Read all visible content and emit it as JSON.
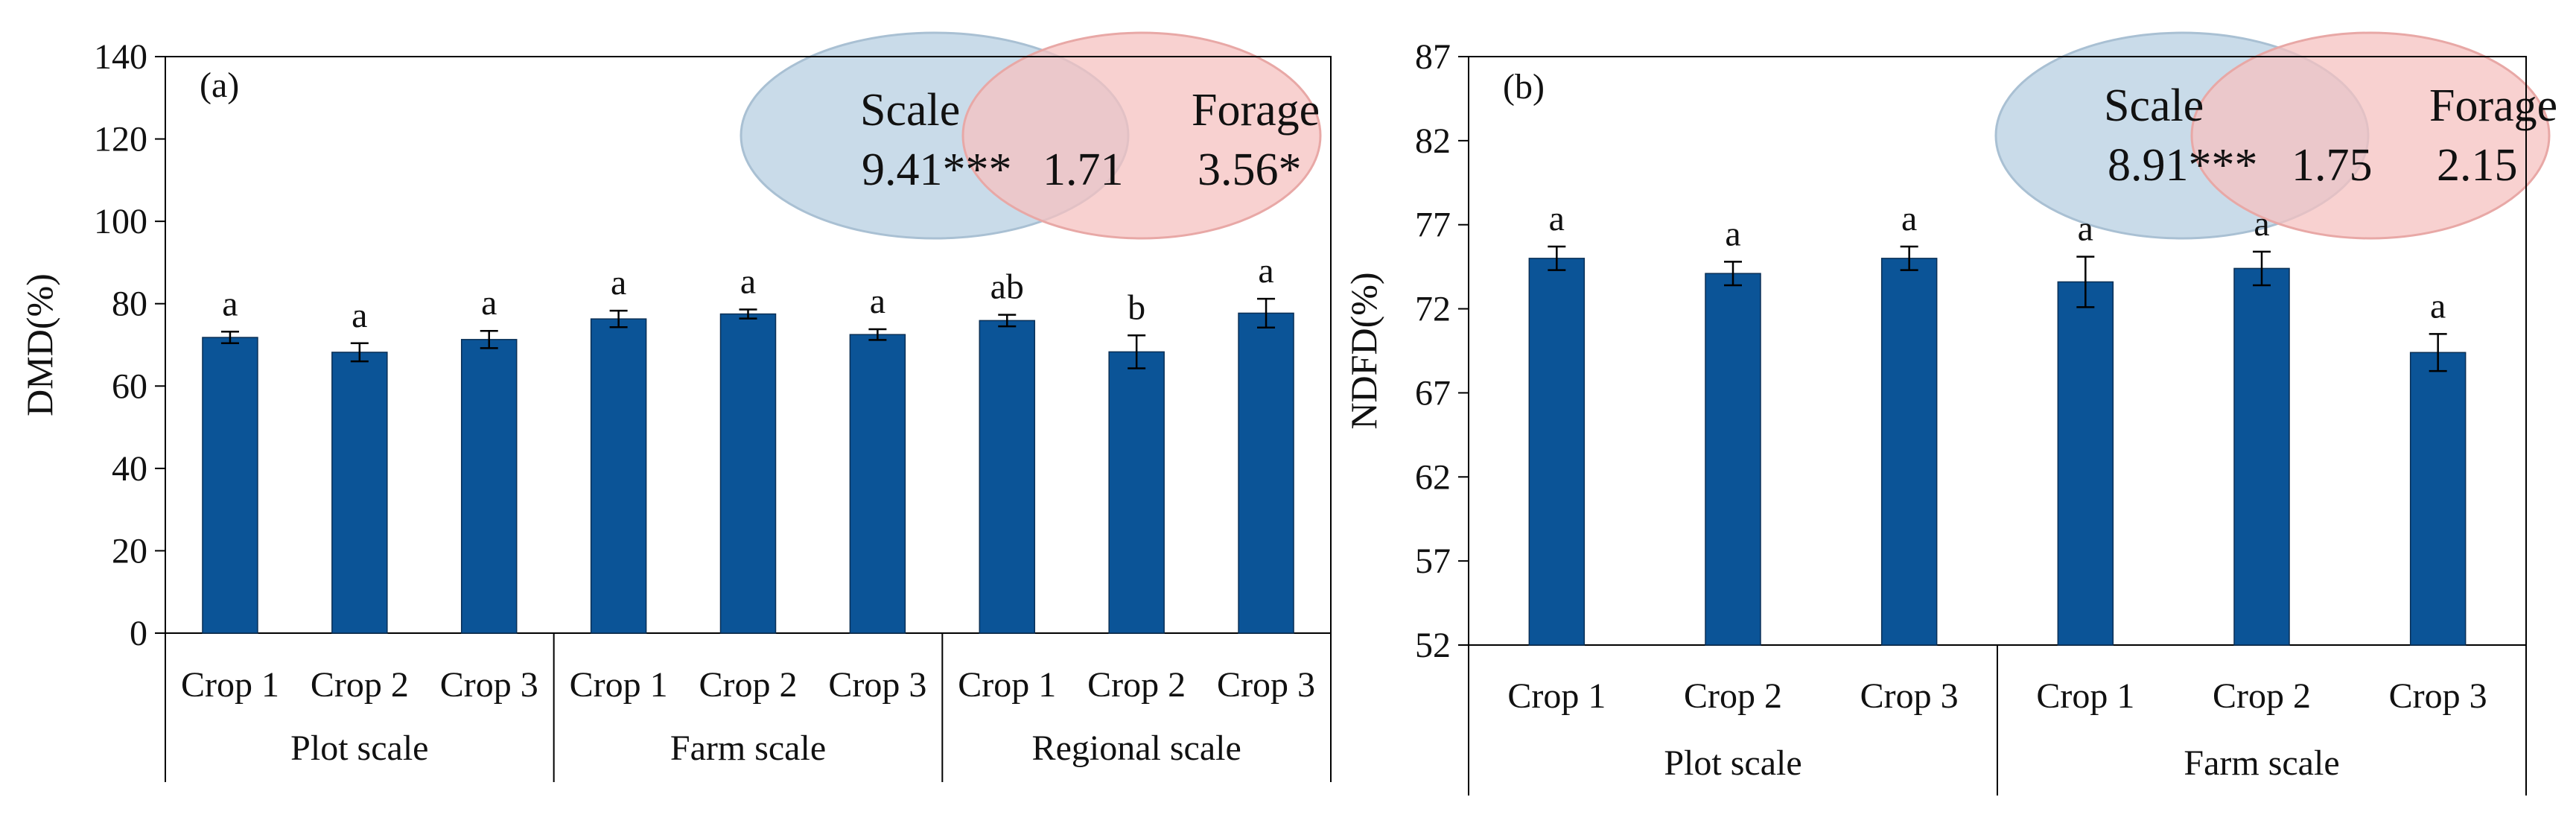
{
  "colors": {
    "bar": "#0b5497",
    "venn_scale": "#c9dbe9",
    "venn_forage": "#f6c2c0",
    "axis": "#000000"
  },
  "chart_data": [
    {
      "type": "bar",
      "panel_label": "(a)",
      "ylabel": "DMD(%)",
      "ylim": [
        0,
        140
      ],
      "yticks": [
        "0",
        "20",
        "40",
        "60",
        "80",
        "100",
        "120",
        "140"
      ],
      "categories": [
        "Crop 1",
        "Crop 2",
        "Crop 3",
        "Crop 1",
        "Crop 2",
        "Crop 3",
        "Crop 1",
        "Crop 2",
        "Crop 3"
      ],
      "groups": [
        {
          "name": "Plot scale",
          "size": 3
        },
        {
          "name": "Farm scale",
          "size": 3
        },
        {
          "name": "Regional scale",
          "size": 3
        }
      ],
      "values": [
        71.8,
        68.2,
        71.3,
        76.3,
        77.5,
        72.5,
        75.9,
        68.3,
        77.7
      ],
      "errors": [
        1.4,
        2.2,
        2.1,
        2.0,
        1.1,
        1.3,
        1.4,
        4.0,
        3.5
      ],
      "significance": [
        "a",
        "a",
        "a",
        "a",
        "a",
        "a",
        "ab",
        "b",
        "a"
      ],
      "venn": {
        "scale_label": "Scale",
        "scale_value": "9.41***",
        "overlap_value": "1.71",
        "forage_label": "Forage",
        "forage_value": "3.56*"
      }
    },
    {
      "type": "bar",
      "panel_label": "(b)",
      "ylabel": "NDFD(%)",
      "ylim": [
        52,
        87
      ],
      "yticks": [
        "52",
        "57",
        "62",
        "67",
        "72",
        "77",
        "82",
        "87"
      ],
      "categories": [
        "Crop 1",
        "Crop 2",
        "Crop 3",
        "Crop 1",
        "Crop 2",
        "Crop 3"
      ],
      "groups": [
        {
          "name": "Plot scale",
          "size": 3
        },
        {
          "name": "Farm scale",
          "size": 3
        }
      ],
      "values": [
        75.0,
        74.1,
        75.0,
        73.6,
        74.4,
        69.4
      ],
      "errors": [
        0.7,
        0.7,
        0.7,
        1.5,
        1.0,
        1.1
      ],
      "significance": [
        "a",
        "a",
        "a",
        "a",
        "a",
        "a"
      ],
      "venn": {
        "scale_label": "Scale",
        "scale_value": "8.91***",
        "overlap_value": "1.75",
        "forage_label": "Forage",
        "forage_value": "2.15"
      }
    }
  ]
}
